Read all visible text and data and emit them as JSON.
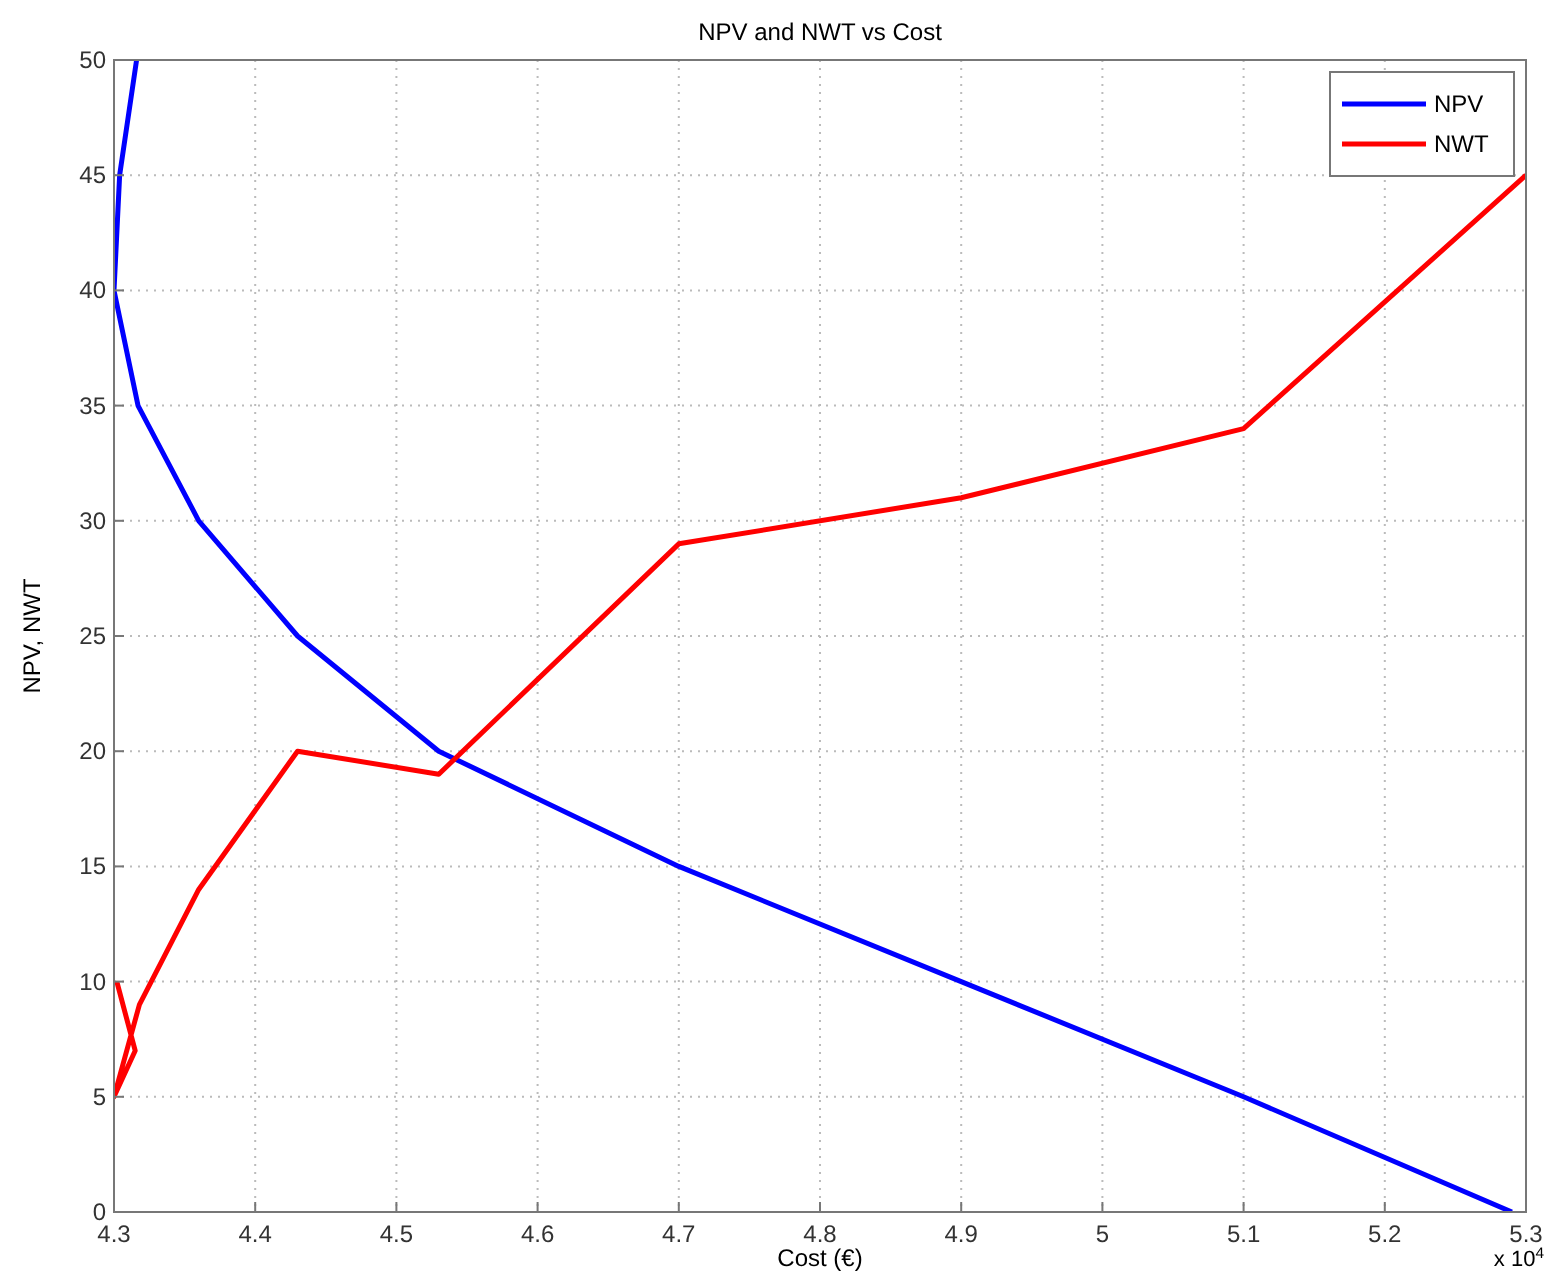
{
  "chart_data": {
    "type": "line",
    "title": "NPV and NWT vs Cost",
    "xlabel": "Cost (€)",
    "ylabel": "NPV, NWT",
    "annotations": [
      "x 10$^{4}$"
    ],
    "xlim": [
      4.3,
      5.3
    ],
    "xticks": [
      4.3,
      4.4,
      4.5,
      4.6,
      4.7,
      4.8,
      4.9,
      5,
      5.1,
      5.2,
      5.3
    ],
    "ylim": [
      0,
      50
    ],
    "yticks": [
      0,
      5,
      10,
      15,
      20,
      25,
      30,
      35,
      40,
      45,
      50
    ],
    "grid": true,
    "legend": "top right",
    "line_style": "solid",
    "series": [
      {
        "name": "NPV",
        "color": "#0000ff",
        "x": [
          4.316,
          4.304,
          4.3,
          4.317,
          4.36,
          4.43,
          4.53,
          4.7,
          4.9,
          5.1,
          5.29
        ],
        "values": [
          50,
          45,
          40,
          35,
          30,
          25,
          20,
          15,
          10,
          5,
          0
        ]
      },
      {
        "name": "NWT",
        "color": "#ff0000",
        "x": [
          4.302,
          4.315,
          4.3,
          4.318,
          4.36,
          4.43,
          4.53,
          4.7,
          4.9,
          5.1,
          5.3
        ],
        "values": [
          10,
          7,
          5,
          9,
          14,
          20,
          19,
          29,
          31,
          34,
          45
        ]
      }
    ]
  }
}
